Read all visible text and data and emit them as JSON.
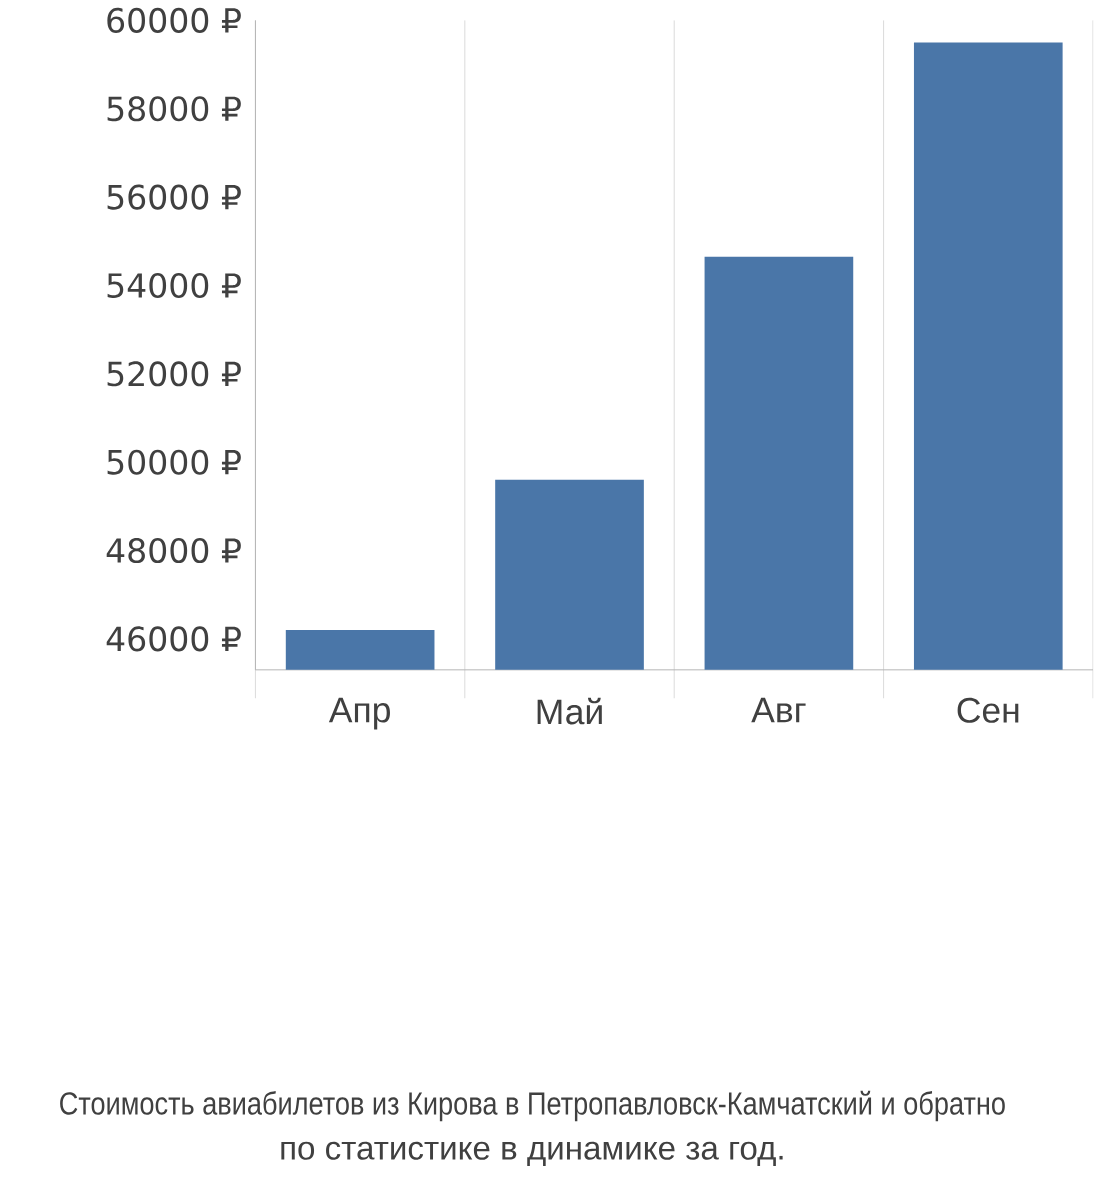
{
  "chart_data": {
    "type": "bar",
    "categories": [
      "Апр",
      "Май",
      "Авг",
      "Сен"
    ],
    "values": [
      46200,
      49600,
      54650,
      59500
    ],
    "color": "#4a76a8",
    "ylim": [
      45300,
      60000
    ],
    "yticks": [
      {
        "value": 46000,
        "label": "46000 ₽"
      },
      {
        "value": 48000,
        "label": "48000 ₽"
      },
      {
        "value": 50000,
        "label": "50000 ₽"
      },
      {
        "value": 52000,
        "label": "52000 ₽"
      },
      {
        "value": 54000,
        "label": "54000 ₽"
      },
      {
        "value": 56000,
        "label": "56000 ₽"
      },
      {
        "value": 58000,
        "label": "58000 ₽"
      },
      {
        "value": 60000,
        "label": "60000 ₽"
      }
    ],
    "grid": "x",
    "annotations": [
      "Стоимость авиабилетов из Кирова в Петропавловск-Камчатский и обратно",
      "по статистике в динамике за год."
    ]
  }
}
